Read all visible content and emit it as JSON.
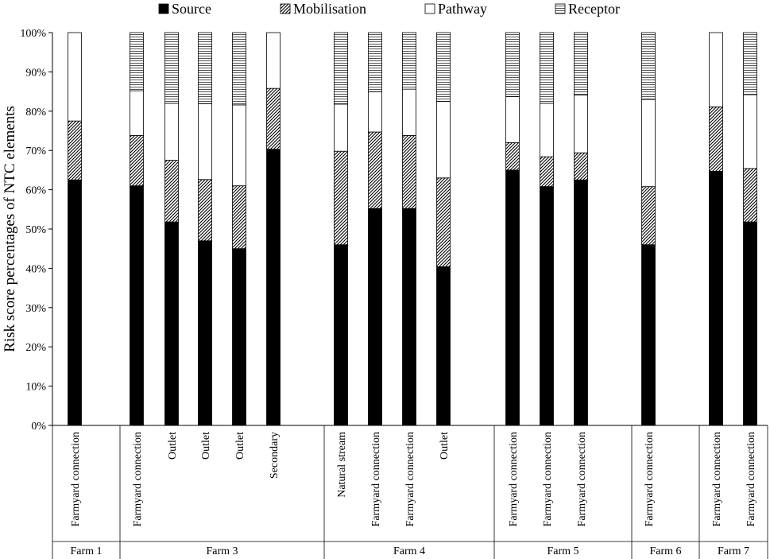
{
  "chart_data": {
    "type": "bar",
    "stacked": true,
    "ylabel": "Risk score percentages of NTC elements",
    "xlabel": "",
    "ylim": [
      0,
      100
    ],
    "yticks": [
      "0%",
      "10%",
      "20%",
      "30%",
      "40%",
      "50%",
      "60%",
      "70%",
      "80%",
      "90%",
      "100%"
    ],
    "legend_position": "top",
    "series": [
      {
        "name": "Source",
        "pattern": "solid",
        "color": "#000000",
        "values": [
          62.5,
          61,
          51.8,
          47,
          45,
          70.3,
          46,
          55.2,
          55.2,
          40.4,
          65,
          60.8,
          62.5,
          46,
          64.7,
          51.8
        ]
      },
      {
        "name": "Mobilisation",
        "pattern": "diagonal",
        "color": "#000000",
        "values": [
          15,
          12.8,
          15.7,
          15.6,
          16,
          15.5,
          23.8,
          19.5,
          18.6,
          22.6,
          7,
          7.6,
          6.9,
          14.8,
          16.4,
          13.6
        ]
      },
      {
        "name": "Pathway",
        "pattern": "white",
        "color": "#ffffff",
        "values": [
          22.5,
          11.4,
          14.5,
          19.3,
          20.6,
          14.2,
          12,
          10.2,
          11.8,
          19.5,
          11.7,
          13.6,
          14.7,
          22.2,
          18.9,
          18.8
        ]
      },
      {
        "name": "Receptor",
        "pattern": "horizontal",
        "color": "#000000",
        "values": [
          0,
          14.8,
          18,
          18.1,
          18.4,
          0,
          18.2,
          15.1,
          14.4,
          17.5,
          16.3,
          18,
          15.9,
          17,
          0,
          15.8
        ]
      }
    ],
    "categories": [
      "Farmyard connection",
      "Farmyard connection",
      "Outlet",
      "Outlet",
      "Outlet",
      "Secondary",
      "Natural stream",
      "Farmyard connection",
      "Farmyard connection",
      "Outlet",
      "Farmyard connection",
      "Farmyard connection",
      "Farmyard connection",
      "Farmyard connection",
      "Farmyard connection",
      "Farmyard connection"
    ],
    "groups": [
      {
        "name": "Farm 1",
        "count": 1
      },
      {
        "name": "Farm 3",
        "count": 5
      },
      {
        "name": "Farm 4",
        "count": 4
      },
      {
        "name": "Farm 5",
        "count": 3
      },
      {
        "name": "Farm 6",
        "count": 1
      },
      {
        "name": "Farm 7",
        "count": 2
      }
    ]
  }
}
